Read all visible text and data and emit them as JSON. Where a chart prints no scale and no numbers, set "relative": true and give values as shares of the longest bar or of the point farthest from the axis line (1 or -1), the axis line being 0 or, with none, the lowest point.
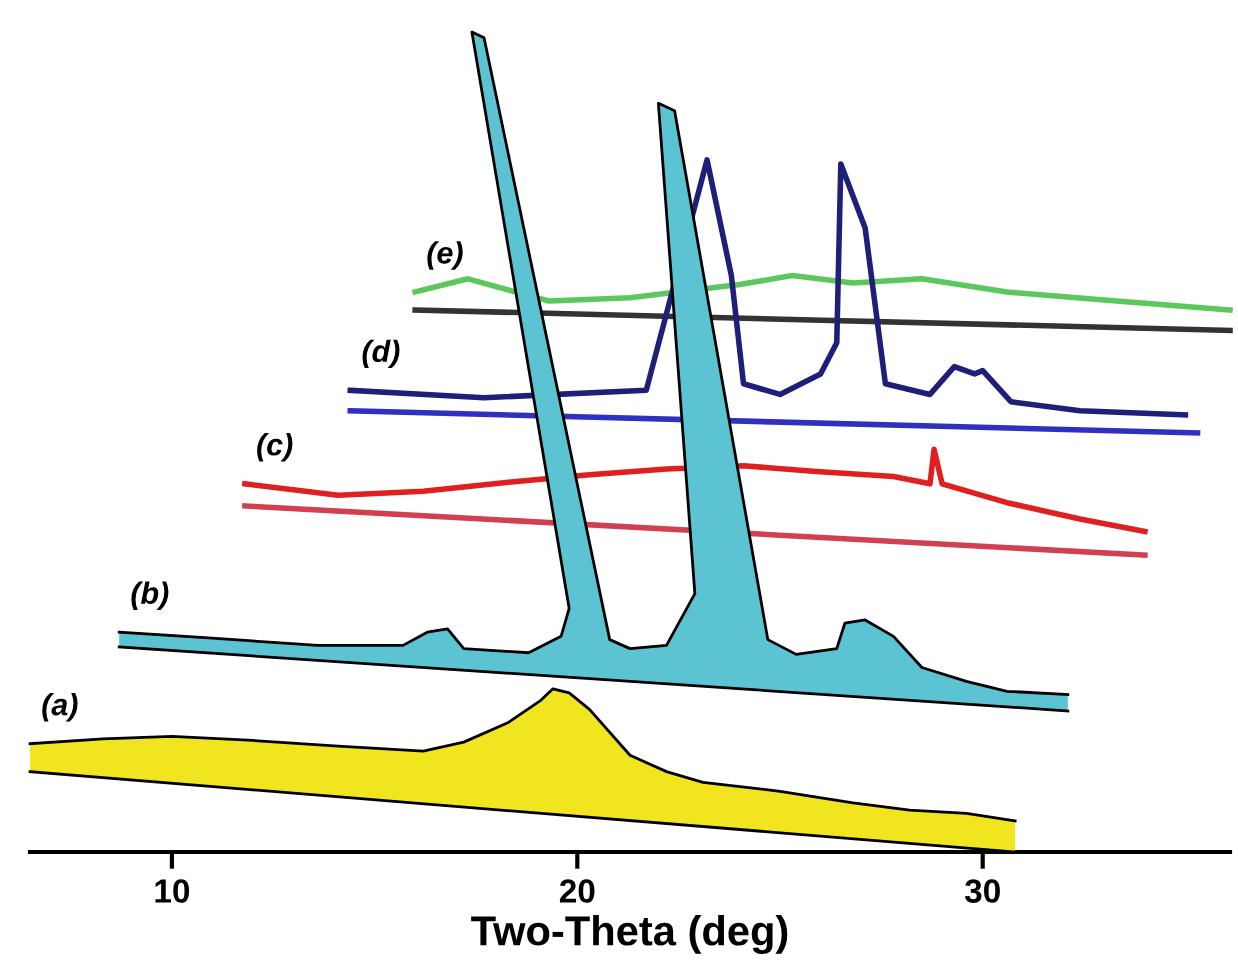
{
  "chart_data": {
    "type": "area",
    "relative": true,
    "xlabel": "Two-Theta (deg)",
    "xlim": [
      6.5,
      36.1
    ],
    "xticks": [
      10,
      20,
      30
    ],
    "tick_labels": "x",
    "grid": false,
    "series": [
      {
        "name": "(a)",
        "color": "#f0e51e",
        "x": [
          6.5,
          8.3,
          10,
          12.0,
          14.1,
          16.2,
          17.2,
          18.3,
          19.1,
          19.4,
          19.8,
          20.3,
          21.3,
          22.2,
          23.1,
          25.0,
          26.8,
          28.2,
          29.6,
          30.8
        ],
        "values": [
          0.132,
          0.138,
          0.141,
          0.136,
          0.129,
          0.123,
          0.134,
          0.158,
          0.185,
          0.199,
          0.194,
          0.174,
          0.118,
          0.098,
          0.085,
          0.074,
          0.06,
          0.051,
          0.047,
          0.038
        ]
      },
      {
        "type": "line",
        "color": "#000000",
        "x": [
          6.5,
          30.8
        ],
        "values": [
          0.098,
          0
        ]
      },
      {
        "name": "(b)",
        "color": "#5bc3d2",
        "x": [
          8.7,
          10.9,
          13.6,
          15.7,
          16.3,
          16.8,
          17.2,
          18.8,
          19.6,
          19.8,
          17.4,
          17.7,
          20.8,
          21.3,
          22.2,
          22.9,
          22.0,
          22.4,
          24.7,
          25.4,
          26.4,
          26.6,
          27.1,
          27.8,
          28.5,
          29.6,
          30.6,
          32.1
        ],
        "values": [
          0.268,
          0.261,
          0.252,
          0.252,
          0.268,
          0.272,
          0.248,
          0.243,
          0.263,
          0.297,
          1,
          0.993,
          0.259,
          0.248,
          0.252,
          0.315,
          0.913,
          0.904,
          0.259,
          0.241,
          0.248,
          0.279,
          0.283,
          0.263,
          0.225,
          0.208,
          0.196,
          0.192
        ]
      },
      {
        "type": "line",
        "color": "#000000",
        "x": [
          8.7,
          32.1
        ],
        "values": [
          0.25,
          0.172
        ]
      },
      {
        "name": "(c)",
        "type": "line",
        "color": "#e02020",
        "x": [
          11.8,
          14.1,
          16.2,
          18.3,
          20.3,
          22.2,
          24.1,
          25.9,
          27.8,
          28.7,
          28.8,
          29.0,
          30.6,
          32.4,
          34.0
        ],
        "values": [
          0.449,
          0.435,
          0.44,
          0.451,
          0.46,
          0.467,
          0.471,
          0.464,
          0.458,
          0.449,
          0.491,
          0.449,
          0.426,
          0.406,
          0.391
        ]
      },
      {
        "name": "(d)",
        "type": "line",
        "color": "#1f1f7a",
        "x": [
          14.4,
          17.7,
          21.7,
          23.2,
          23.8,
          24.1,
          25.0,
          26.0,
          26.4,
          26.5,
          27.1,
          27.6,
          28.7,
          29.3,
          29.8,
          30.0,
          30.7,
          32.4,
          35.0
        ],
        "values": [
          0.563,
          0.554,
          0.563,
          0.844,
          0.703,
          0.571,
          0.558,
          0.583,
          0.621,
          0.839,
          0.761,
          0.571,
          0.558,
          0.592,
          0.583,
          0.587,
          0.549,
          0.538,
          0.533
        ]
      },
      {
        "name": "(e)",
        "type": "line",
        "color": "#5cc85c",
        "x": [
          16.0,
          17.3,
          19.3,
          21.3,
          24.0,
          25.3,
          26.8,
          28.5,
          30.6,
          33.3,
          36.1
        ],
        "values": [
          0.683,
          0.699,
          0.672,
          0.676,
          0.692,
          0.703,
          0.694,
          0.699,
          0.683,
          0.672,
          0.661
        ]
      },
      {
        "type": "line",
        "color": "#d04050",
        "x": [
          11.8,
          34.0
        ],
        "values": [
          0.422,
          0.362
        ]
      },
      {
        "type": "line",
        "color": "#3030c0",
        "x": [
          14.4,
          35.3
        ],
        "values": [
          0.538,
          0.511
        ]
      },
      {
        "type": "line",
        "color": "#333333",
        "x": [
          16.0,
          36.1
        ],
        "values": [
          0.661,
          0.636
        ]
      }
    ]
  }
}
